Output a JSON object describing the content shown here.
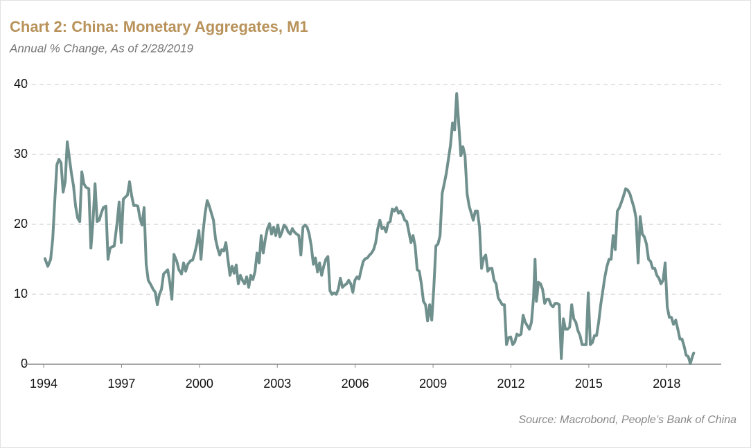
{
  "chart_data": {
    "type": "line",
    "title": "Chart 2: China: Monetary Aggregates, M1",
    "subtitle": "Annual % Change, As of 2/28/2019",
    "source": "Source: Macrobond, People’s Bank of China",
    "xlim": [
      1994,
      2020.1
    ],
    "xticks": [
      1994,
      1997,
      2000,
      2003,
      2006,
      2009,
      2012,
      2015,
      2018
    ],
    "ylim": [
      0,
      40
    ],
    "yticks": [
      0,
      10,
      20,
      30,
      40
    ],
    "grid": true,
    "color": "#70908d",
    "x": [
      1994.05,
      1994.16,
      1994.27,
      1994.35,
      1994.43,
      1994.51,
      1994.59,
      1994.67,
      1994.75,
      1994.83,
      1994.91,
      1994.99,
      1995.07,
      1995.15,
      1995.23,
      1995.31,
      1995.39,
      1995.47,
      1995.55,
      1995.63,
      1995.74,
      1995.82,
      1995.9,
      1995.98,
      1996.06,
      1996.14,
      1996.22,
      1996.3,
      1996.4,
      1996.48,
      1996.56,
      1996.64,
      1996.72,
      1996.83,
      1996.91,
      1996.99,
      1997.07,
      1997.15,
      1997.23,
      1997.31,
      1997.39,
      1997.47,
      1997.55,
      1997.63,
      1997.71,
      1997.79,
      1997.87,
      1997.95,
      1998.03,
      1998.14,
      1998.22,
      1998.3,
      1998.38,
      1998.46,
      1998.54,
      1998.62,
      1998.7,
      1998.78,
      1998.86,
      1998.94,
      1999.02,
      1999.13,
      1999.21,
      1999.31,
      1999.39,
      1999.47,
      1999.55,
      1999.66,
      1999.74,
      1999.82,
      1999.9,
      1999.98,
      2000.06,
      2000.14,
      2000.22,
      2000.3,
      2000.38,
      2000.46,
      2000.54,
      2000.62,
      2000.7,
      2000.78,
      2000.86,
      2000.94,
      2001.02,
      2001.1,
      2001.18,
      2001.26,
      2001.34,
      2001.42,
      2001.5,
      2001.58,
      2001.66,
      2001.74,
      2001.82,
      2001.9,
      2001.98,
      2002.06,
      2002.14,
      2002.22,
      2002.3,
      2002.38,
      2002.46,
      2002.54,
      2002.62,
      2002.7,
      2002.78,
      2002.86,
      2002.94,
      2003.02,
      2003.1,
      2003.18,
      2003.26,
      2003.34,
      2003.42,
      2003.5,
      2003.58,
      2003.66,
      2003.75,
      2003.83,
      2003.91,
      2003.99,
      2004.07,
      2004.15,
      2004.23,
      2004.31,
      2004.39,
      2004.47,
      2004.55,
      2004.63,
      2004.71,
      2004.79,
      2004.87,
      2004.95,
      2005.03,
      2005.11,
      2005.19,
      2005.27,
      2005.35,
      2005.43,
      2005.51,
      2005.59,
      2005.67,
      2005.75,
      2005.83,
      2005.91,
      2005.99,
      2006.07,
      2006.15,
      2006.23,
      2006.31,
      2006.39,
      2006.47,
      2006.55,
      2006.63,
      2006.71,
      2006.79,
      2006.87,
      2006.95,
      2007.03,
      2007.11,
      2007.19,
      2007.27,
      2007.35,
      2007.43,
      2007.51,
      2007.59,
      2007.67,
      2007.75,
      2007.83,
      2007.91,
      2007.99,
      2008.07,
      2008.15,
      2008.23,
      2008.31,
      2008.39,
      2008.47,
      2008.55,
      2008.63,
      2008.71,
      2008.79,
      2008.87,
      2008.95,
      2009.03,
      2009.11,
      2009.19,
      2009.27,
      2009.35,
      2009.43,
      2009.51,
      2009.59,
      2009.67,
      2009.75,
      2009.83,
      2009.91,
      2009.99,
      2010.07,
      2010.15,
      2010.23,
      2010.31,
      2010.39,
      2010.47,
      2010.55,
      2010.63,
      2010.71,
      2010.79,
      2010.87,
      2010.95,
      2011.03,
      2011.11,
      2011.19,
      2011.27,
      2011.35,
      2011.43,
      2011.51,
      2011.59,
      2011.67,
      2011.75,
      2011.83,
      2011.91,
      2011.99,
      2012.07,
      2012.15,
      2012.23,
      2012.31,
      2012.39,
      2012.47,
      2012.55,
      2012.63,
      2012.71,
      2012.79,
      2012.87,
      2012.93,
      2012.98,
      2013.06,
      2013.14,
      2013.22,
      2013.3,
      2013.38,
      2013.46,
      2013.54,
      2013.62,
      2013.7,
      2013.78,
      2013.86,
      2013.94,
      2014.02,
      2014.1,
      2014.18,
      2014.26,
      2014.34,
      2014.42,
      2014.5,
      2014.58,
      2014.66,
      2014.74,
      2014.82,
      2014.9,
      2014.98,
      2015.06,
      2015.14,
      2015.22,
      2015.3,
      2015.38,
      2015.46,
      2015.54,
      2015.62,
      2015.7,
      2015.78,
      2015.86,
      2015.94,
      2016.02,
      2016.1,
      2016.18,
      2016.26,
      2016.34,
      2016.42,
      2016.5,
      2016.58,
      2016.66,
      2016.74,
      2016.82,
      2016.9,
      2016.98,
      2017.06,
      2017.14,
      2017.22,
      2017.3,
      2017.38,
      2017.46,
      2017.54,
      2017.62,
      2017.7,
      2017.78,
      2017.86,
      2017.94,
      2018.02,
      2018.1,
      2018.18,
      2018.26,
      2018.35,
      2018.43,
      2018.51,
      2018.59,
      2018.67,
      2018.75,
      2018.83,
      2018.91,
      2018.99,
      2019.04
    ],
    "values": [
      15.1,
      14.0,
      15.0,
      17.9,
      23.4,
      28.5,
      29.3,
      28.8,
      24.6,
      26.1,
      31.8,
      29.5,
      27.3,
      25.5,
      22.6,
      20.9,
      20.4,
      27.5,
      25.8,
      25.3,
      25.1,
      16.6,
      20.4,
      25.8,
      20.4,
      20.6,
      21.6,
      22.4,
      22.6,
      15.0,
      16.6,
      16.8,
      16.9,
      20.2,
      23.2,
      17.4,
      23.6,
      23.9,
      24.2,
      26.1,
      24.1,
      22.7,
      22.7,
      22.6,
      20.9,
      19.9,
      22.4,
      14.3,
      12.0,
      11.3,
      10.7,
      10.3,
      8.5,
      10.0,
      10.7,
      12.9,
      13.2,
      13.5,
      11.7,
      9.3,
      15.7,
      14.7,
      13.5,
      12.9,
      14.5,
      13.3,
      14.3,
      14.8,
      14.9,
      15.9,
      17.2,
      19.1,
      15.0,
      18.9,
      21.6,
      23.4,
      22.6,
      21.6,
      20.6,
      17.9,
      16.6,
      15.6,
      16.4,
      16.2,
      17.4,
      15.0,
      12.7,
      14.0,
      13.0,
      14.2,
      11.5,
      12.7,
      12.0,
      11.5,
      12.5,
      11.0,
      12.7,
      12.1,
      13.2,
      15.9,
      14.5,
      18.4,
      15.9,
      17.9,
      19.4,
      20.1,
      18.6,
      19.6,
      18.4,
      19.9,
      18.2,
      18.9,
      19.9,
      19.6,
      18.9,
      18.6,
      19.4,
      18.9,
      18.6,
      18.4,
      15.6,
      19.6,
      19.9,
      19.6,
      18.6,
      16.9,
      14.3,
      15.2,
      13.2,
      14.5,
      12.7,
      14.0,
      15.0,
      15.4,
      10.5,
      10.0,
      10.2,
      10.0,
      10.7,
      12.3,
      11.0,
      11.3,
      11.5,
      12.0,
      11.5,
      10.3,
      12.0,
      12.5,
      12.2,
      13.5,
      14.7,
      15.1,
      15.2,
      15.6,
      15.9,
      16.4,
      17.4,
      19.4,
      20.6,
      19.4,
      19.6,
      18.9,
      20.2,
      20.4,
      22.2,
      21.9,
      22.4,
      21.6,
      21.9,
      21.4,
      20.6,
      20.4,
      18.9,
      17.4,
      18.4,
      16.9,
      13.5,
      13.3,
      11.5,
      9.0,
      8.5,
      6.2,
      8.5,
      6.3,
      11.0,
      16.9,
      17.2,
      18.4,
      24.4,
      25.8,
      27.3,
      29.3,
      31.3,
      34.5,
      33.5,
      38.7,
      34.3,
      29.8,
      31.1,
      29.8,
      24.4,
      22.6,
      21.6,
      20.6,
      21.9,
      21.9,
      19.6,
      13.7,
      15.2,
      15.6,
      13.3,
      13.7,
      13.7,
      12.0,
      11.5,
      9.5,
      9.0,
      8.5,
      8.5,
      2.8,
      3.8,
      3.9,
      2.8,
      3.2,
      4.3,
      4.1,
      4.3,
      7.0,
      6.0,
      5.5,
      5.0,
      6.0,
      9.5,
      15.0,
      9.0,
      11.7,
      11.5,
      10.7,
      8.7,
      9.3,
      9.3,
      8.5,
      8.2,
      8.7,
      8.7,
      8.5,
      0.8,
      6.5,
      5.0,
      5.0,
      5.3,
      8.5,
      6.5,
      6.0,
      4.8,
      4.1,
      2.8,
      2.8,
      2.8,
      10.2,
      2.8,
      3.1,
      4.1,
      4.1,
      6.0,
      8.5,
      10.5,
      12.5,
      14.0,
      15.0,
      15.0,
      18.4,
      16.4,
      21.9,
      22.4,
      23.2,
      24.1,
      25.1,
      24.9,
      24.4,
      23.4,
      22.4,
      20.9,
      14.5,
      21.1,
      18.6,
      18.2,
      17.2,
      15.0,
      14.7,
      13.7,
      13.7,
      12.7,
      12.3,
      11.5,
      12.0,
      14.5,
      8.2,
      6.7,
      6.7,
      5.7,
      6.3,
      5.0,
      3.6,
      3.6,
      2.6,
      1.3,
      1.1,
      0.1,
      1.1,
      1.6
    ]
  }
}
